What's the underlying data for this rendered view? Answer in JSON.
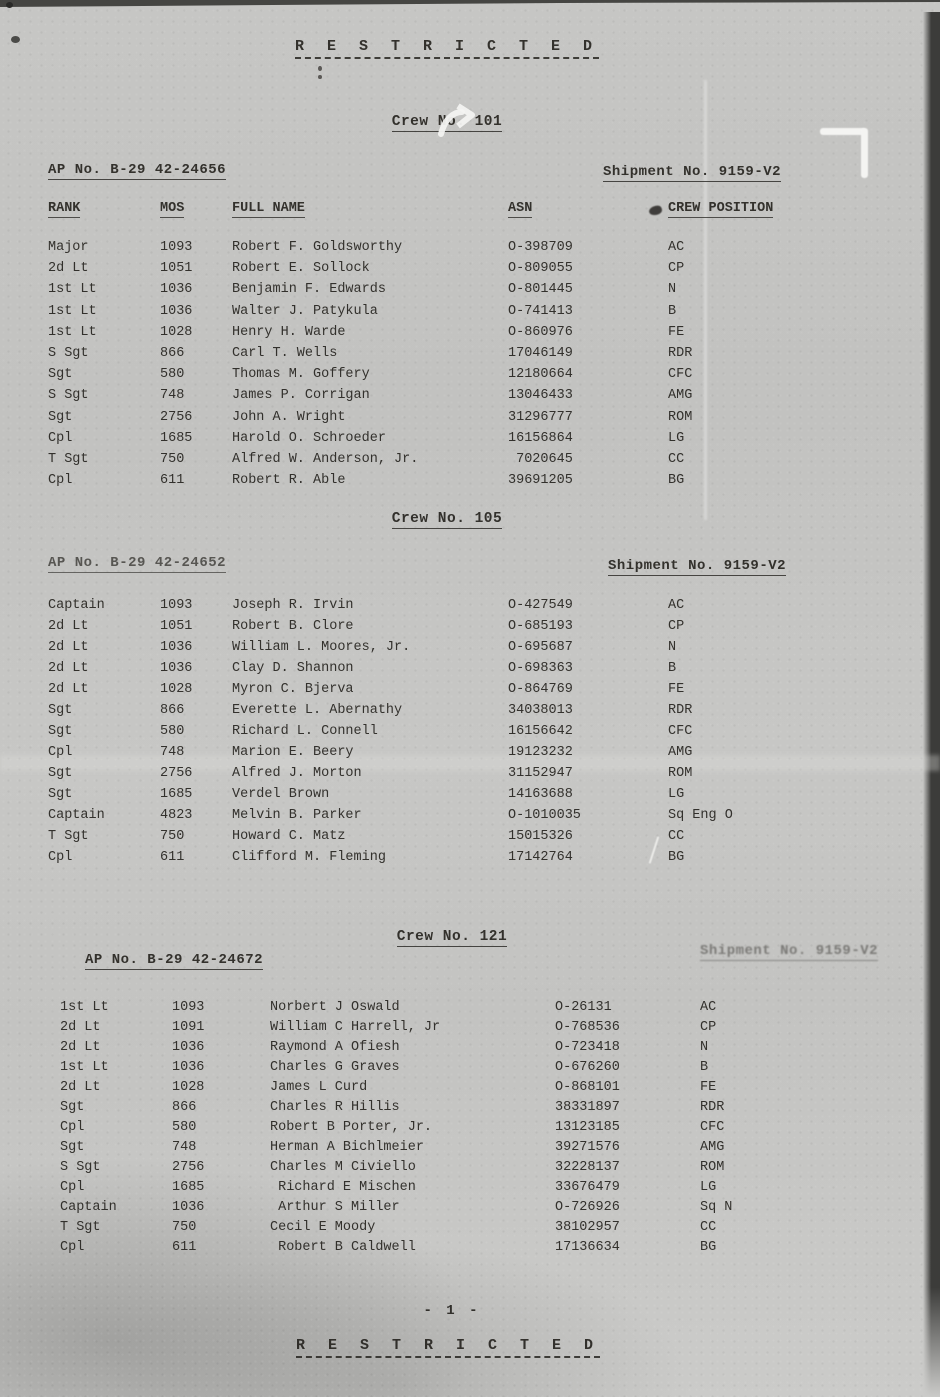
{
  "classification": {
    "top": "R E S T R I C T E D",
    "bottom": "R E S T R I C T E D"
  },
  "page_number": "- 1 -",
  "columns": {
    "rank": "RANK",
    "mos": "MOS",
    "name": "FULL NAME",
    "asn": "ASN",
    "pos": "CREW POSITION"
  },
  "artifact_colors": {
    "paper": "#c4c4c2",
    "ink": "#262420",
    "scan_edge": "#2e2e2c",
    "scratch_white": "#f4f4f2"
  },
  "crews": [
    {
      "title": "Crew No. 101",
      "aircraft": "AP No. B-29 42-24656",
      "shipment": "Shipment No. 9159-V2",
      "rows": [
        {
          "rank": "Major",
          "mos": "1093",
          "name": "Robert F. Goldsworthy",
          "asn": "O-398709",
          "pos": "AC"
        },
        {
          "rank": "2d Lt",
          "mos": "1051",
          "name": "Robert E. Sollock",
          "asn": "O-809055",
          "pos": "CP"
        },
        {
          "rank": "1st Lt",
          "mos": "1036",
          "name": "Benjamin F. Edwards",
          "asn": "O-801445",
          "pos": "N"
        },
        {
          "rank": "1st Lt",
          "mos": "1036",
          "name": "Walter J. Patykula",
          "asn": "O-741413",
          "pos": "B"
        },
        {
          "rank": "1st Lt",
          "mos": "1028",
          "name": "Henry H. Warde",
          "asn": "O-860976",
          "pos": "FE"
        },
        {
          "rank": "S Sgt",
          "mos": "866",
          "name": "Carl T. Wells",
          "asn": "17046149",
          "pos": "RDR"
        },
        {
          "rank": "Sgt",
          "mos": "580",
          "name": "Thomas M. Goffery",
          "asn": "12180664",
          "pos": "CFC"
        },
        {
          "rank": "S Sgt",
          "mos": "748",
          "name": "James P. Corrigan",
          "asn": "13046433",
          "pos": "AMG"
        },
        {
          "rank": "Sgt",
          "mos": "2756",
          "name": "John A. Wright",
          "asn": "31296777",
          "pos": "ROM"
        },
        {
          "rank": "Cpl",
          "mos": "1685",
          "name": "Harold O. Schroeder",
          "asn": "16156864",
          "pos": "LG"
        },
        {
          "rank": "T Sgt",
          "mos": "750",
          "name": "Alfred W. Anderson, Jr.",
          "asn": " 7020645",
          "pos": "CC"
        },
        {
          "rank": "Cpl",
          "mos": "611",
          "name": "Robert R. Able",
          "asn": "39691205",
          "pos": "BG"
        }
      ]
    },
    {
      "title": "Crew No. 105",
      "aircraft": "AP No. B-29 42-24652",
      "shipment": "Shipment No. 9159-V2",
      "rows": [
        {
          "rank": "Captain",
          "mos": "1093",
          "name": "Joseph R. Irvin",
          "asn": "O-427549",
          "pos": "AC"
        },
        {
          "rank": "2d Lt",
          "mos": "1051",
          "name": "Robert B. Clore",
          "asn": "O-685193",
          "pos": "CP"
        },
        {
          "rank": "2d Lt",
          "mos": "1036",
          "name": "William L. Moores, Jr.",
          "asn": "O-695687",
          "pos": "N"
        },
        {
          "rank": "2d Lt",
          "mos": "1036",
          "name": "Clay D. Shannon",
          "asn": "O-698363",
          "pos": "B"
        },
        {
          "rank": "2d Lt",
          "mos": "1028",
          "name": "Myron C. Bjerva",
          "asn": "O-864769",
          "pos": "FE"
        },
        {
          "rank": "Sgt",
          "mos": "866",
          "name": "Everette L. Abernathy",
          "asn": "34038013",
          "pos": "RDR"
        },
        {
          "rank": "Sgt",
          "mos": "580",
          "name": "Richard L. Connell",
          "asn": "16156642",
          "pos": "CFC"
        },
        {
          "rank": "Cpl",
          "mos": "748",
          "name": "Marion E. Beery",
          "asn": "19123232",
          "pos": "AMG"
        },
        {
          "rank": "Sgt",
          "mos": "2756",
          "name": "Alfred J. Morton",
          "asn": "31152947",
          "pos": "ROM"
        },
        {
          "rank": "Sgt",
          "mos": "1685",
          "name": "Verdel Brown",
          "asn": "14163688",
          "pos": "LG"
        },
        {
          "rank": "Captain",
          "mos": "4823",
          "name": "Melvin B. Parker",
          "asn": "O-1010035",
          "pos": "Sq Eng O"
        },
        {
          "rank": "T Sgt",
          "mos": "750",
          "name": "Howard C. Matz",
          "asn": "15015326",
          "pos": "CC"
        },
        {
          "rank": "Cpl",
          "mos": "611",
          "name": "Clifford M. Fleming",
          "asn": "17142764",
          "pos": "BG"
        }
      ]
    },
    {
      "title": "Crew No. 121",
      "aircraft": "AP No. B-29 42-24672",
      "shipment": "Shipment No. 9159-V2",
      "rows": [
        {
          "rank": "1st Lt",
          "mos": "1093",
          "name": "Norbert J Oswald",
          "asn": "O-26131",
          "pos": "AC"
        },
        {
          "rank": "2d Lt",
          "mos": "1091",
          "name": "William C Harrell, Jr",
          "asn": "O-768536",
          "pos": "CP"
        },
        {
          "rank": "2d Lt",
          "mos": "1036",
          "name": "Raymond A Ofiesh",
          "asn": "O-723418",
          "pos": "N"
        },
        {
          "rank": "1st Lt",
          "mos": "1036",
          "name": "Charles G Graves",
          "asn": "O-676260",
          "pos": "B"
        },
        {
          "rank": "2d Lt",
          "mos": "1028",
          "name": "James L Curd",
          "asn": "O-868101",
          "pos": "FE"
        },
        {
          "rank": "Sgt",
          "mos": "866",
          "name": "Charles R Hillis",
          "asn": "38331897",
          "pos": "RDR"
        },
        {
          "rank": "Cpl",
          "mos": "580",
          "name": "Robert B Porter, Jr.",
          "asn": "13123185",
          "pos": "CFC"
        },
        {
          "rank": "Sgt",
          "mos": "748",
          "name": "Herman A Bichlmeier",
          "asn": "39271576",
          "pos": "AMG"
        },
        {
          "rank": "S Sgt",
          "mos": "2756",
          "name": "Charles M Civiello",
          "asn": "32228137",
          "pos": "ROM"
        },
        {
          "rank": "Cpl",
          "mos": "1685",
          "name": " Richard E Mischen",
          "asn": "33676479",
          "pos": "LG"
        },
        {
          "rank": "Captain",
          "mos": "1036",
          "name": " Arthur S Miller",
          "asn": "O-726926",
          "pos": "Sq N"
        },
        {
          "rank": "T Sgt",
          "mos": "750",
          "name": "Cecil E Moody",
          "asn": "38102957",
          "pos": "CC"
        },
        {
          "rank": "Cpl",
          "mos": "611",
          "name": " Robert B Caldwell",
          "asn": "17136634",
          "pos": "BG"
        }
      ]
    }
  ]
}
